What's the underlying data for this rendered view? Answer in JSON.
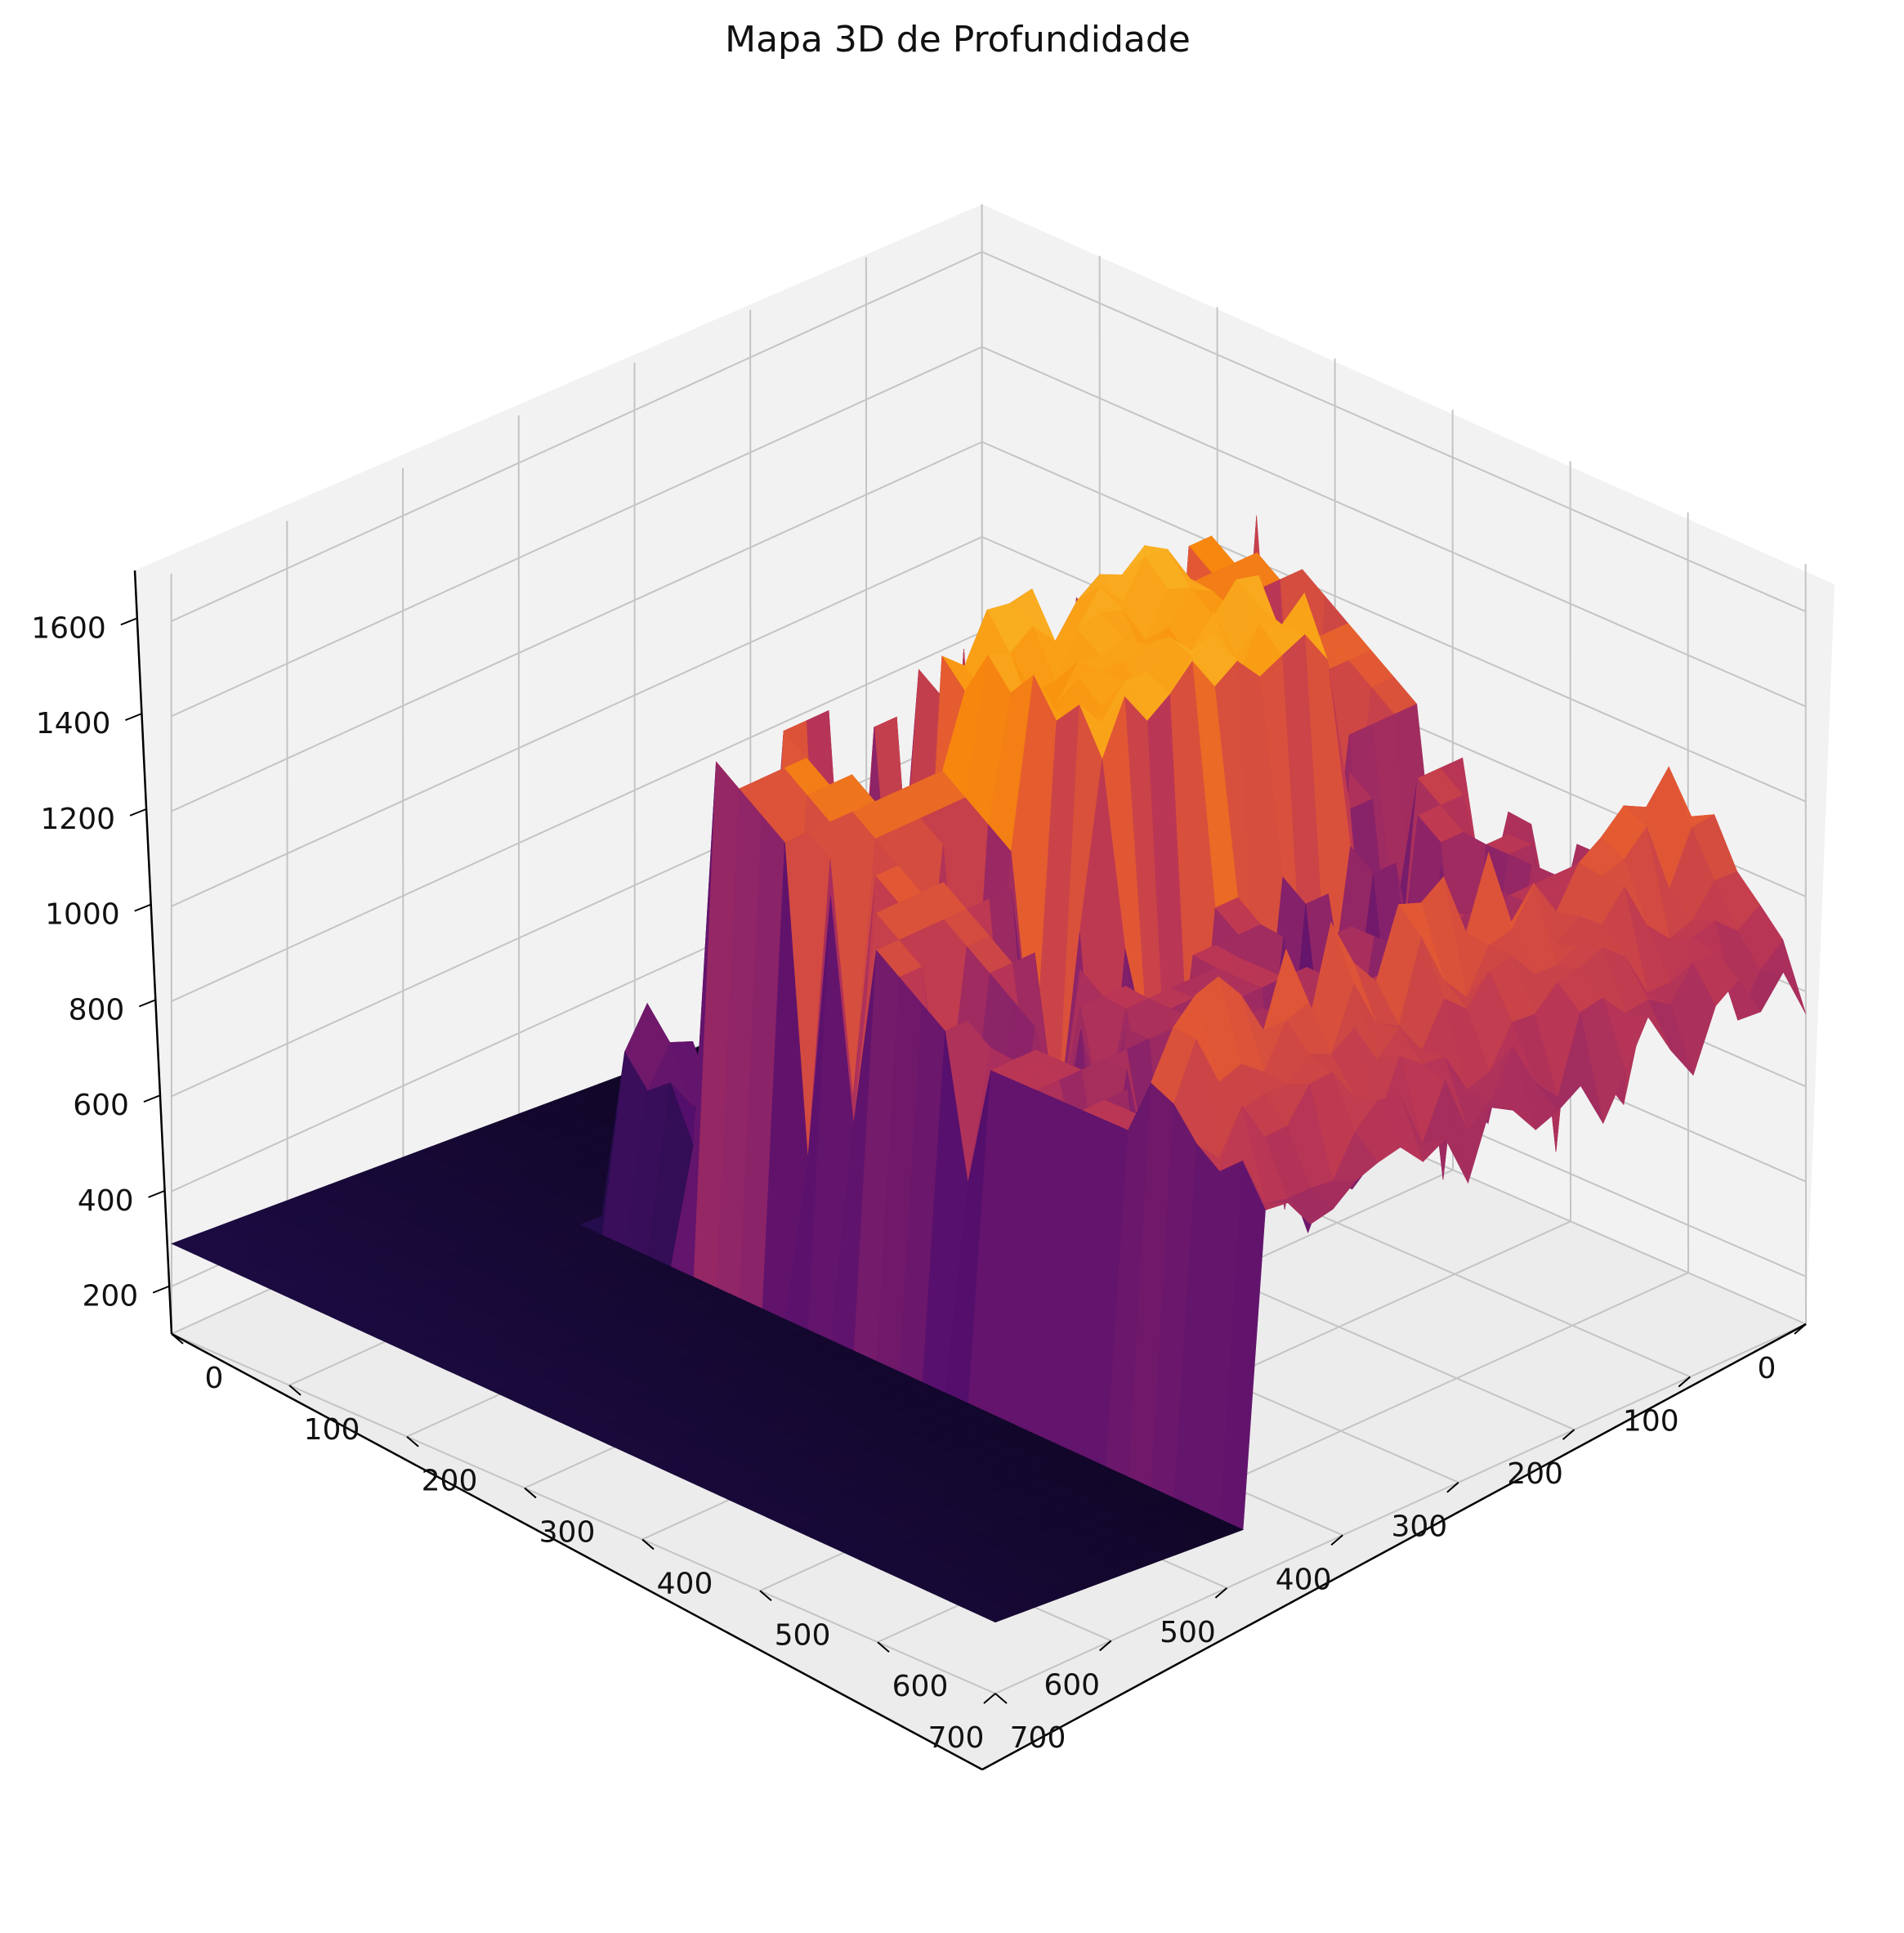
{
  "chart_data": {
    "type": "surface3d",
    "title": "Mapa 3D de Profundidade",
    "colormap": "inferno",
    "grid": true,
    "view": "isometric 3D, x axis receding left, y axis receding right",
    "x_axis": {
      "range": [
        0,
        700
      ],
      "ticks": [
        "0",
        "100",
        "200",
        "300",
        "400",
        "500",
        "600",
        "700"
      ]
    },
    "y_axis": {
      "range": [
        0,
        700
      ],
      "ticks": [
        "0",
        "100",
        "200",
        "300",
        "400",
        "500",
        "600",
        "700"
      ]
    },
    "z_axis": {
      "range": [
        100,
        1700
      ],
      "ticks": [
        "200",
        "400",
        "600",
        "800",
        "1000",
        "1200",
        "1400",
        "1600"
      ]
    },
    "surface_summary": {
      "floor_region": {
        "description": "low flat plane, dark",
        "z_approx": 150
      },
      "ridge_region": {
        "description": "tall irregular walls",
        "z_approx": [
          900,
          1450
        ]
      },
      "peak_region": {
        "description": "bright yellow top",
        "z_approx": 1450
      }
    }
  }
}
